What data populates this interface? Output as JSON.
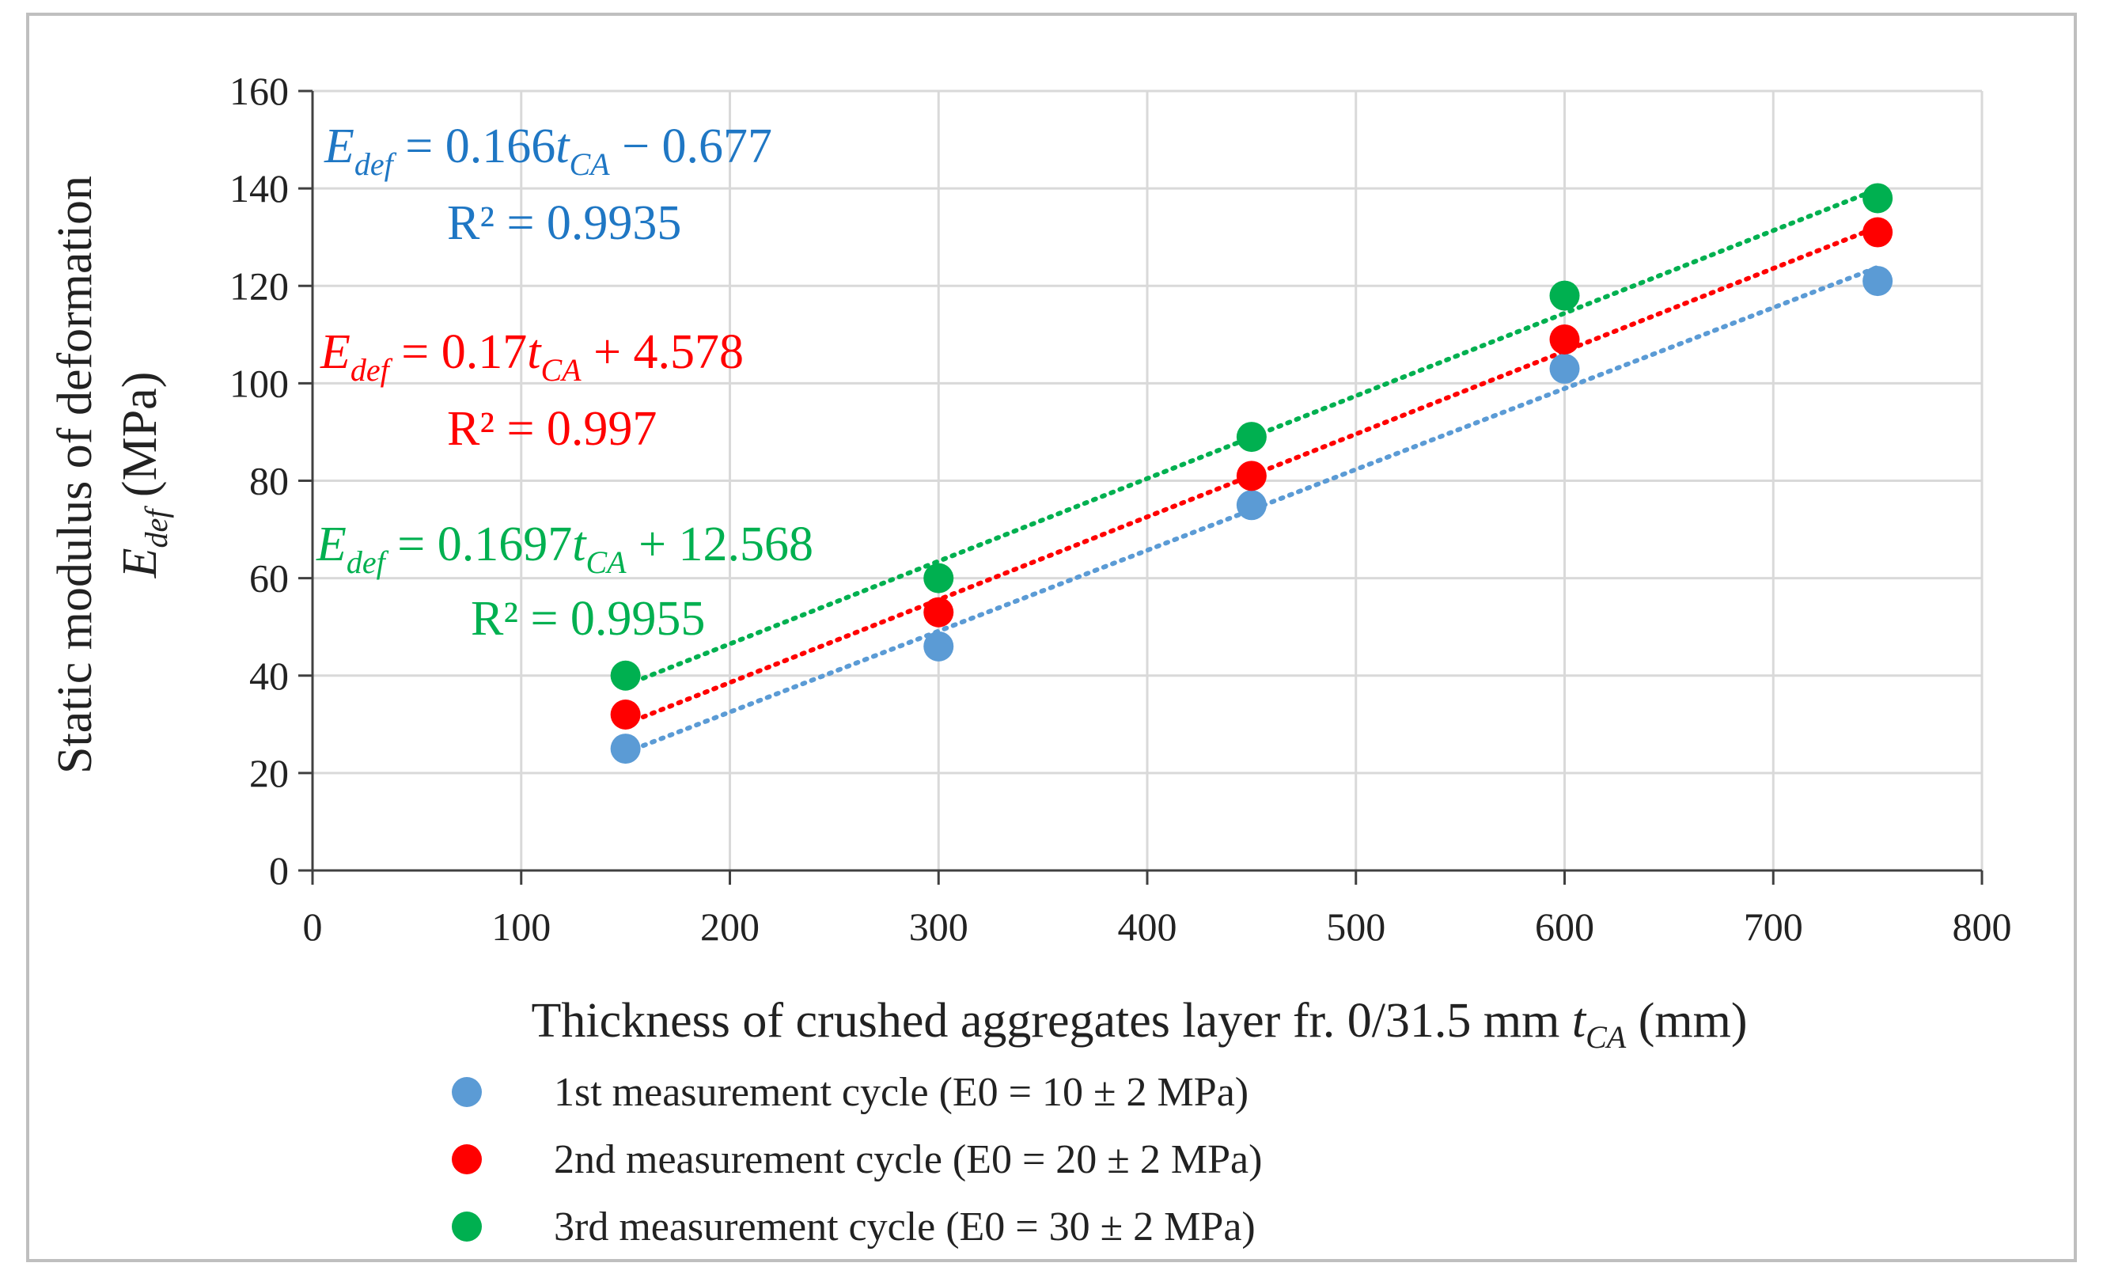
{
  "chart_data": {
    "type": "scatter",
    "xlabel": "Thickness of crushed aggregates layer fr. 0/31.5 mm",
    "xlabel_symbol": "t",
    "xlabel_symbol_sub": "CA",
    "xlabel_unit": " (mm)",
    "ylabel_line1": "Static modulus of deformation",
    "ylabel_symbol": "E",
    "ylabel_symbol_sub": "def",
    "ylabel_unit": " (MPa)",
    "xlim": [
      0,
      800
    ],
    "ylim": [
      0,
      160
    ],
    "xticks": [
      0,
      100,
      200,
      300,
      400,
      500,
      600,
      700,
      800
    ],
    "yticks": [
      0,
      20,
      40,
      60,
      80,
      100,
      120,
      140,
      160
    ],
    "grid": true,
    "x": [
      150,
      300,
      450,
      600,
      750
    ],
    "series": [
      {
        "name": "1st measurement cycle (E0 = 10 ± 2  MPa)",
        "color": "#5b9bd5",
        "values": [
          25,
          46,
          75,
          103,
          121
        ],
        "trendline": {
          "slope": 0.166,
          "intercept": -0.677,
          "style": "dotted"
        },
        "equation": {
          "lhs": "E",
          "lhs_sub": "def",
          "eq1": " = 0.166",
          "var": "t",
          "var_sub": "CA",
          "eq2": " − 0.677",
          "r2": "R² = 0.9935"
        }
      },
      {
        "name": "2nd measurement cycle (E0 = 20 ± 2 MPa)",
        "color": "#ff0000",
        "values": [
          32,
          53,
          81,
          109,
          131
        ],
        "trendline": {
          "slope": 0.17,
          "intercept": 4.578,
          "style": "dotted"
        },
        "equation": {
          "lhs": "E",
          "lhs_sub": "def",
          "eq1": " = 0.17",
          "var": "t",
          "var_sub": "CA",
          "eq2": " + 4.578",
          "r2": "R² = 0.997"
        }
      },
      {
        "name": "3rd measurement cycle (E0 = 30 ± 2 MPa)",
        "color": "#00b050",
        "values": [
          40,
          60,
          89,
          118,
          138
        ],
        "trendline": {
          "slope": 0.1697,
          "intercept": 12.568,
          "style": "dotted"
        },
        "equation": {
          "lhs": "E",
          "lhs_sub": "def",
          "eq1": " = 0.1697",
          "var": "t",
          "var_sub": "CA",
          "eq2": " + 12.568",
          "r2": "R² = 0.9955"
        }
      }
    ],
    "eq_colors": [
      "#1f77c4",
      "#ff0000",
      "#00b050"
    ],
    "legend_position": "bottom"
  }
}
